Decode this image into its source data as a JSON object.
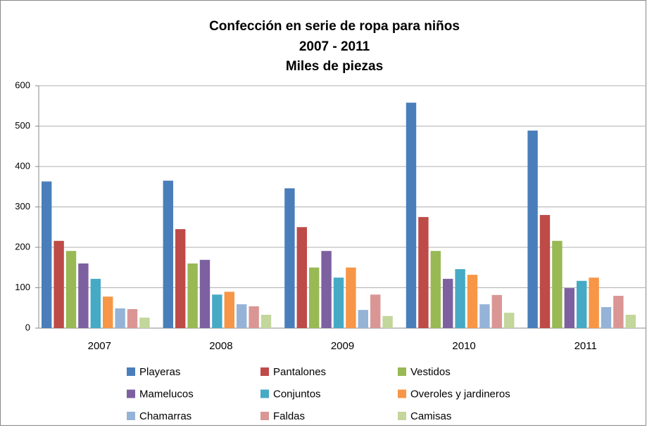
{
  "chart_data": {
    "type": "bar",
    "title": "Confección en serie de ropa para niños",
    "subtitle": [
      "2007 - 2011",
      "Miles de piezas"
    ],
    "categories": [
      "2007",
      "2008",
      "2009",
      "2010",
      "2011"
    ],
    "series": [
      {
        "name": "Playeras",
        "color": "#4a7ebb",
        "values": [
          363,
          365,
          346,
          558,
          489
        ]
      },
      {
        "name": "Pantalones",
        "color": "#be4b48",
        "values": [
          216,
          245,
          250,
          275,
          280
        ]
      },
      {
        "name": "Vestidos",
        "color": "#98b954",
        "values": [
          191,
          160,
          150,
          191,
          216
        ]
      },
      {
        "name": "Mamelucos",
        "color": "#7d60a0",
        "values": [
          160,
          169,
          191,
          122,
          99
        ]
      },
      {
        "name": "Conjuntos",
        "color": "#46aac5",
        "values": [
          122,
          83,
          125,
          146,
          117
        ]
      },
      {
        "name": "Overoles y jardineros",
        "color": "#f79646",
        "values": [
          78,
          90,
          150,
          132,
          125
        ]
      },
      {
        "name": "Chamarras",
        "color": "#95b3d7",
        "values": [
          49,
          59,
          45,
          59,
          52
        ]
      },
      {
        "name": "Faldas",
        "color": "#da9694",
        "values": [
          47,
          54,
          83,
          82,
          80
        ]
      },
      {
        "name": "Camisas",
        "color": "#c3d69b",
        "values": [
          26,
          33,
          30,
          38,
          33
        ]
      }
    ],
    "ylim": [
      0,
      600
    ],
    "yticks": [
      0,
      100,
      200,
      300,
      400,
      500,
      600
    ],
    "grid": true,
    "legend": "bottom"
  }
}
